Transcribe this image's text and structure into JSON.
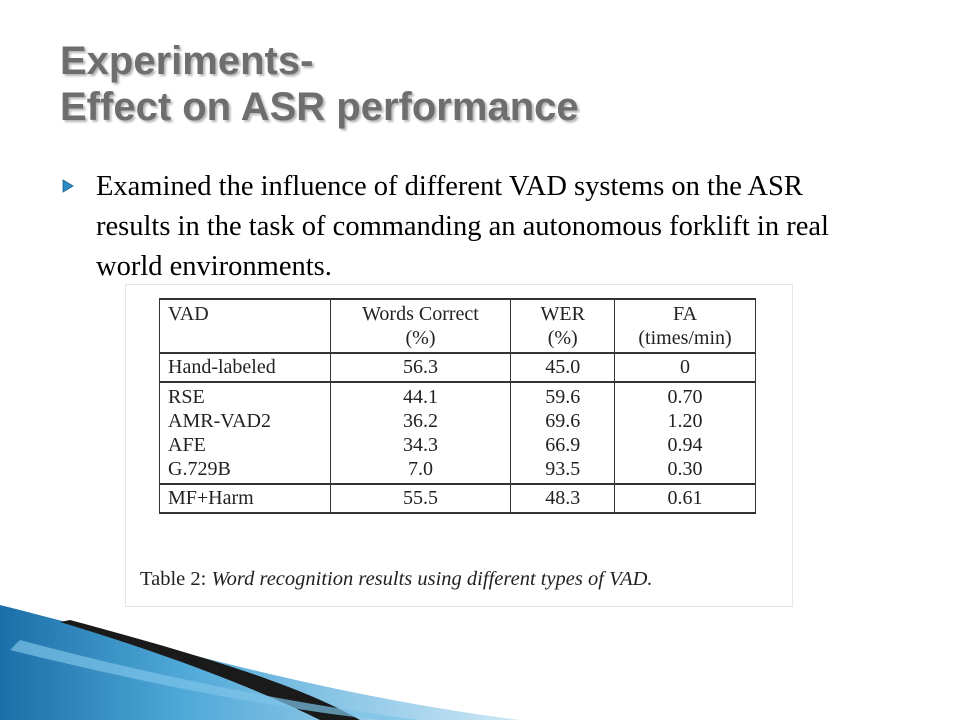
{
  "slide": {
    "title_line1": "Experiments-",
    "title_line2": "Effect on ASR performance",
    "bullet_text": "Examined the influence of different VAD systems on the ASR results in the task of commanding an autonomous forklift in real world environments.",
    "bullet_icon": "triangle-right-icon",
    "accent_color": "#2b8cc4"
  },
  "table": {
    "headers": [
      {
        "line1": "VAD",
        "line2": ""
      },
      {
        "line1": "Words Correct",
        "line2": "(%)"
      },
      {
        "line1": "WER",
        "line2": "(%)"
      },
      {
        "line1": "FA",
        "line2": "(times/min)"
      }
    ],
    "group_a": [
      [
        "Hand-labeled",
        "56.3",
        "45.0",
        "0"
      ]
    ],
    "group_b": [
      [
        "RSE",
        "44.1",
        "59.6",
        "0.70"
      ],
      [
        "AMR-VAD2",
        "36.2",
        "69.6",
        "1.20"
      ],
      [
        "AFE",
        "34.3",
        "66.9",
        "0.94"
      ],
      [
        "G.729B",
        "7.0",
        "93.5",
        "0.30"
      ]
    ],
    "group_c": [
      [
        "MF+Harm",
        "55.5",
        "48.3",
        "0.61"
      ]
    ],
    "caption_prefix": "Table 2: ",
    "caption_italic": "Word recognition results using different types of VAD."
  }
}
